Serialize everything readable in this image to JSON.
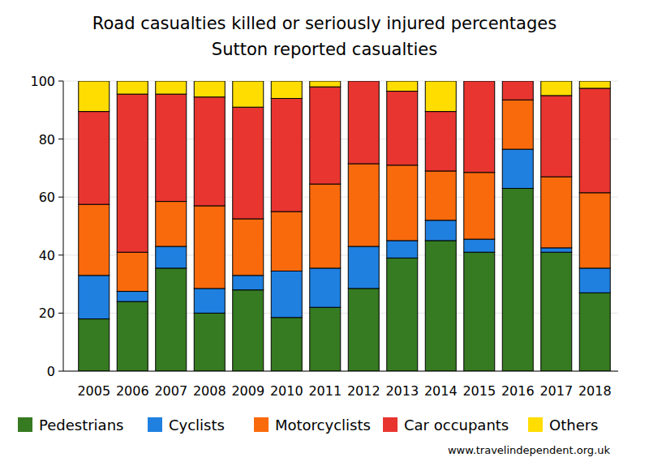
{
  "chart_data": {
    "type": "bar",
    "stacked": true,
    "title": "Road casualties killed or seriously injured percentages",
    "subtitle": "Sutton reported casualties",
    "annotations": [
      "www.travelindependent.org.uk"
    ],
    "categories": [
      "2005",
      "2006",
      "2007",
      "2008",
      "2009",
      "2010",
      "2011",
      "2012",
      "2013",
      "2014",
      "2015",
      "2016",
      "2017",
      "2018"
    ],
    "series": [
      {
        "name": "Pedestrians",
        "color": "#367a21",
        "values": [
          18,
          24,
          35.5,
          20,
          28,
          18.5,
          22,
          28.5,
          39,
          45,
          41,
          63,
          41,
          27
        ]
      },
      {
        "name": "Cyclists",
        "color": "#1f80e0",
        "values": [
          15,
          3.5,
          7.5,
          8.5,
          5,
          16,
          13.5,
          14.5,
          6,
          7,
          4.5,
          13.5,
          1.5,
          8.5
        ]
      },
      {
        "name": "Motorcyclists",
        "color": "#f96a0c",
        "values": [
          24.5,
          13.5,
          15.5,
          28.5,
          19.5,
          20.5,
          29,
          28.5,
          26,
          17,
          23,
          17,
          24.5,
          26
        ]
      },
      {
        "name": "Car occupants",
        "color": "#e83530",
        "values": [
          32,
          54.5,
          37,
          37.5,
          38.5,
          39,
          33.5,
          28.5,
          25.5,
          20.5,
          31.5,
          6.5,
          28,
          36
        ]
      },
      {
        "name": "Others",
        "color": "#ffdd00",
        "values": [
          10.5,
          4.5,
          4.5,
          5.5,
          9,
          6,
          2,
          0,
          3.5,
          10.5,
          0,
          0,
          5,
          2.5
        ]
      }
    ],
    "ylim": [
      0,
      100
    ],
    "yticks": [
      0,
      20,
      40,
      60,
      80,
      100
    ],
    "grid": true,
    "legend": "bottom"
  }
}
